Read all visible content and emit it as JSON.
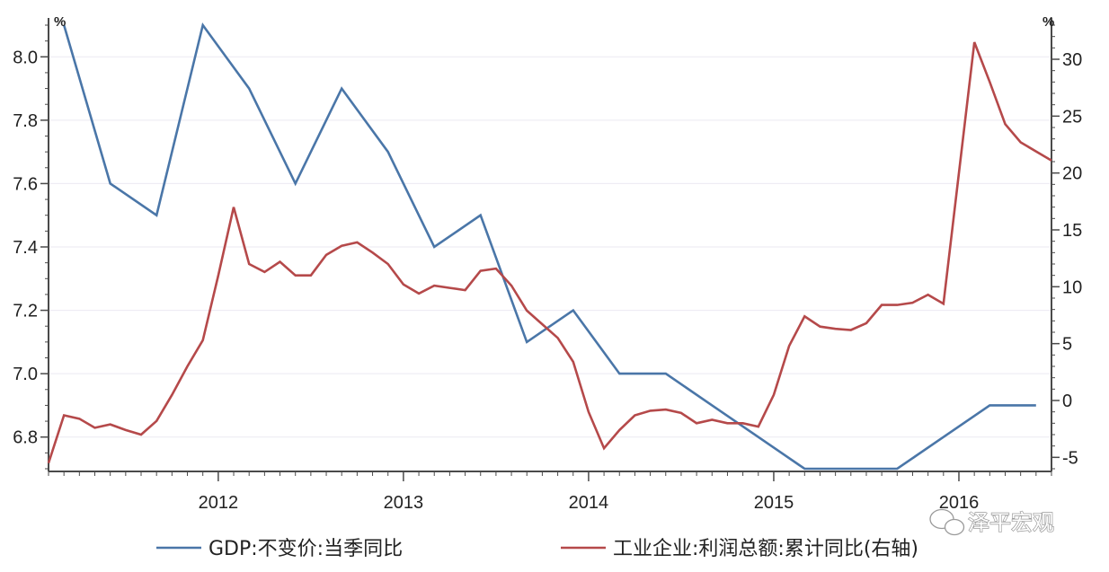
{
  "chart_data": {
    "type": "line",
    "left_axis": {
      "unit": "%",
      "ylim": [
        6.7,
        8.1
      ],
      "ticks": [
        6.8,
        7.0,
        7.2,
        7.4,
        7.6,
        7.8,
        8.0
      ],
      "tick_labels": [
        "6.8",
        "7.0",
        "7.2",
        "7.4",
        "7.6",
        "7.8",
        "8.0"
      ]
    },
    "right_axis": {
      "unit": "%",
      "ylim": [
        -6,
        33
      ],
      "ticks": [
        -5,
        0,
        5,
        10,
        15,
        20,
        25,
        30
      ],
      "tick_labels": [
        "-5",
        "0",
        "5",
        "10",
        "15",
        "20",
        "25",
        "30"
      ]
    },
    "x_axis": {
      "type": "date",
      "range": [
        "2011-02",
        "2016-07"
      ],
      "labels": [
        "2012",
        "2013",
        "2014",
        "2015",
        "2016"
      ]
    },
    "grid": true,
    "legend_position": "bottom",
    "series": [
      {
        "name": "GDP:不变价:当季同比",
        "axis": "left",
        "color": "#4a76a8",
        "points": [
          [
            "2011-03",
            8.1
          ],
          [
            "2011-06",
            7.6
          ],
          [
            "2011-09",
            7.5
          ],
          [
            "2011-12",
            8.1
          ],
          [
            "2012-03",
            7.9
          ],
          [
            "2012-06",
            7.6
          ],
          [
            "2012-09",
            7.9
          ],
          [
            "2012-12",
            7.7
          ],
          [
            "2013-03",
            7.4
          ],
          [
            "2013-06",
            7.5
          ],
          [
            "2013-09",
            7.1
          ],
          [
            "2013-12",
            7.2
          ],
          [
            "2014-03",
            7.0
          ],
          [
            "2014-06",
            7.0
          ],
          [
            "2014-09",
            6.9
          ],
          [
            "2014-12",
            6.8
          ],
          [
            "2015-03",
            6.7
          ],
          [
            "2015-06",
            6.7
          ],
          [
            "2015-09",
            6.7
          ],
          [
            "2015-12",
            6.8
          ],
          [
            "2016-03",
            6.9
          ],
          [
            "2016-06",
            6.9
          ]
        ]
      },
      {
        "name": "工业企业:利润总额:累计同比(右轴)",
        "axis": "right",
        "color": "#b5494a",
        "points": [
          [
            "2011-02",
            -5.5
          ],
          [
            "2011-03",
            -1.3
          ],
          [
            "2011-04",
            -1.6
          ],
          [
            "2011-05",
            -2.4
          ],
          [
            "2011-06",
            -2.1
          ],
          [
            "2011-07",
            -2.6
          ],
          [
            "2011-08",
            -3.0
          ],
          [
            "2011-09",
            -1.8
          ],
          [
            "2011-10",
            0.5
          ],
          [
            "2011-11",
            3.0
          ],
          [
            "2011-12",
            5.3
          ],
          [
            "2012-01",
            11.0
          ],
          [
            "2012-02",
            17.0
          ],
          [
            "2012-03",
            12.0
          ],
          [
            "2012-04",
            11.3
          ],
          [
            "2012-05",
            12.2
          ],
          [
            "2012-06",
            11.0
          ],
          [
            "2012-07",
            11.0
          ],
          [
            "2012-08",
            12.8
          ],
          [
            "2012-09",
            13.6
          ],
          [
            "2012-10",
            13.9
          ],
          [
            "2012-11",
            13.0
          ],
          [
            "2012-12",
            12.0
          ],
          [
            "2013-01",
            10.2
          ],
          [
            "2013-02",
            9.4
          ],
          [
            "2013-03",
            10.1
          ],
          [
            "2013-04",
            9.9
          ],
          [
            "2013-05",
            9.7
          ],
          [
            "2013-06",
            11.4
          ],
          [
            "2013-07",
            11.6
          ],
          [
            "2013-08",
            10.1
          ],
          [
            "2013-09",
            7.9
          ],
          [
            "2013-10",
            6.7
          ],
          [
            "2013-11",
            5.5
          ],
          [
            "2013-12",
            3.4
          ],
          [
            "2014-01",
            -1.0
          ],
          [
            "2014-02",
            -4.2
          ],
          [
            "2014-03",
            -2.6
          ],
          [
            "2014-04",
            -1.3
          ],
          [
            "2014-05",
            -0.9
          ],
          [
            "2014-06",
            -0.8
          ],
          [
            "2014-07",
            -1.1
          ],
          [
            "2014-08",
            -2.0
          ],
          [
            "2014-09",
            -1.7
          ],
          [
            "2014-10",
            -2.0
          ],
          [
            "2014-11",
            -2.0
          ],
          [
            "2014-12",
            -2.3
          ],
          [
            "2015-01",
            0.5
          ],
          [
            "2015-02",
            4.8
          ],
          [
            "2015-03",
            7.4
          ],
          [
            "2015-04",
            6.5
          ],
          [
            "2015-05",
            6.3
          ],
          [
            "2015-06",
            6.2
          ],
          [
            "2015-07",
            6.8
          ],
          [
            "2015-08",
            8.4
          ],
          [
            "2015-09",
            8.4
          ],
          [
            "2015-10",
            8.6
          ],
          [
            "2015-11",
            9.3
          ],
          [
            "2015-12",
            8.5
          ],
          [
            "2016-01",
            20.0
          ],
          [
            "2016-02",
            31.5
          ],
          [
            "2016-03",
            28.0
          ],
          [
            "2016-04",
            24.3
          ],
          [
            "2016-05",
            22.7
          ],
          [
            "2016-06",
            21.9
          ],
          [
            "2016-07",
            21.1
          ]
        ]
      }
    ]
  },
  "watermark": {
    "text": "泽平宏观",
    "icon": "wechat-icon"
  }
}
